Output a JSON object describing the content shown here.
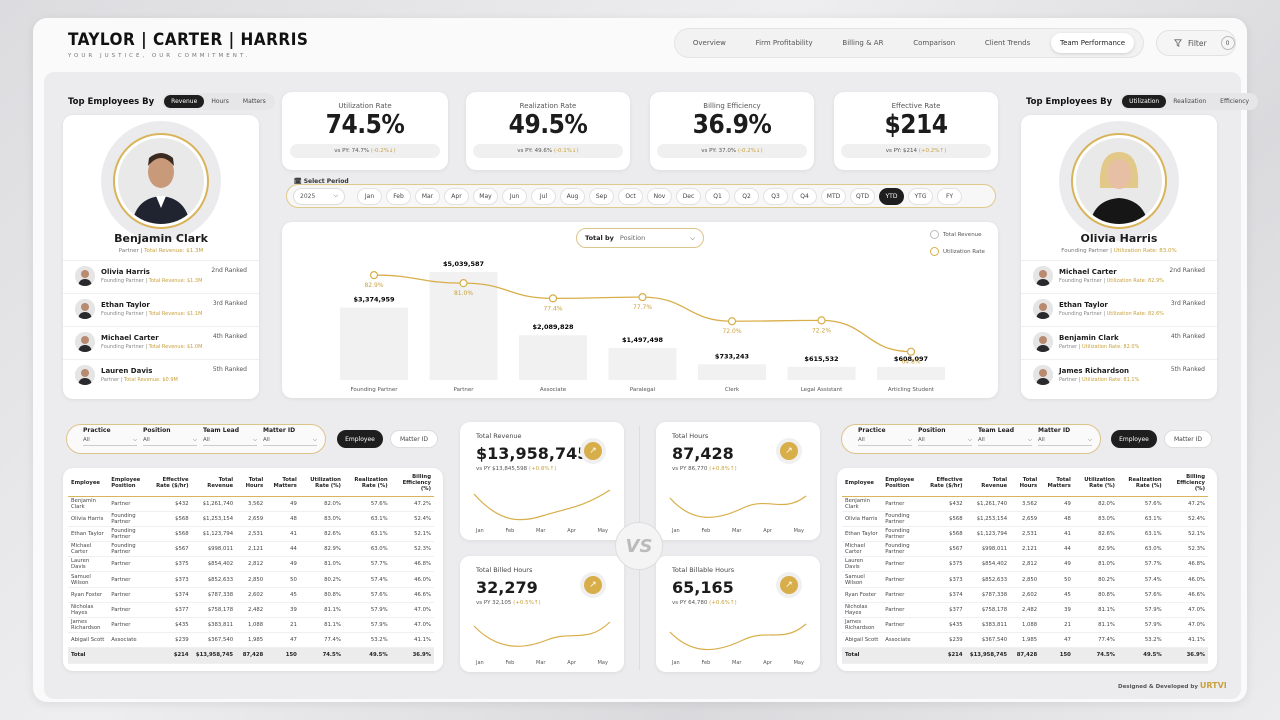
{
  "brand": {
    "name": "TAYLOR | CARTER | HARRIS",
    "tagline": "YOUR JUSTICE, OUR COMMITMENT."
  },
  "nav": {
    "tabs": [
      "Overview",
      "Firm Profitability",
      "Billing & AR",
      "Comparison",
      "Client Trends",
      "Team Performance"
    ],
    "active": "Team Performance"
  },
  "filter": {
    "label": "Filter",
    "count": "0"
  },
  "left_panel": {
    "title": "Top Employees By",
    "tabs": [
      "Revenue",
      "Hours",
      "Matters"
    ],
    "active": "Revenue",
    "top": {
      "name": "Benjamin Clark",
      "role": "Partner",
      "metric": "Total Revenue: $1.3M"
    },
    "ranks": [
      {
        "name": "Olivia Harris",
        "role": "Founding Partner",
        "metric": "Total Revenue: $1.3M",
        "rank": "2nd Ranked"
      },
      {
        "name": "Ethan Taylor",
        "role": "Founding Partner",
        "metric": "Total Revenue: $1.1M",
        "rank": "3rd Ranked"
      },
      {
        "name": "Michael Carter",
        "role": "Founding Partner",
        "metric": "Total Revenue: $1.0M",
        "rank": "4th Ranked"
      },
      {
        "name": "Lauren Davis",
        "role": "Partner",
        "metric": "Total Revenue: $0.9M",
        "rank": "5th Ranked"
      }
    ]
  },
  "right_panel": {
    "title": "Top Employees By",
    "tabs": [
      "Utilization",
      "Realization",
      "Efficiency"
    ],
    "active": "Utilization",
    "top": {
      "name": "Olivia Harris",
      "role": "Founding Partner",
      "metric": "Utilization Rate: 83.0%"
    },
    "ranks": [
      {
        "name": "Michael Carter",
        "role": "Founding Partner",
        "metric": "Utilization Rate: 82.9%",
        "rank": "2nd Ranked"
      },
      {
        "name": "Ethan Taylor",
        "role": "Founding Partner",
        "metric": "Utilization Rate: 82.6%",
        "rank": "3rd Ranked"
      },
      {
        "name": "Benjamin Clark",
        "role": "Partner",
        "metric": "Utilization Rate: 82.0%",
        "rank": "4th Ranked"
      },
      {
        "name": "James Richardson",
        "role": "Partner",
        "metric": "Utilization Rate: 81.1%",
        "rank": "5th Ranked"
      }
    ]
  },
  "kpis": [
    {
      "label": "Utilization Rate",
      "value": "74.5%",
      "py": "vs PY: 74.7%",
      "delta": "(-0.2%↓)"
    },
    {
      "label": "Realization Rate",
      "value": "49.5%",
      "py": "vs PY: 49.6%",
      "delta": "(-0.1%↓)"
    },
    {
      "label": "Billing Efficiency",
      "value": "36.9%",
      "py": "vs PY: 37.0%",
      "delta": "(-0.2%↓)"
    },
    {
      "label": "Effective Rate",
      "value": "$214",
      "py": "vs PY: $214",
      "delta": "(+0.2%↑)"
    }
  ],
  "period": {
    "label": "Select Period",
    "year": "2025",
    "options": [
      "Jan",
      "Feb",
      "Mar",
      "Apr",
      "May",
      "Jun",
      "Jul",
      "Aug",
      "Sep",
      "Oct",
      "Nov",
      "Dec",
      "Q1",
      "Q2",
      "Q3",
      "Q4",
      "MTD",
      "QTD",
      "YTD",
      "YTG",
      "FY"
    ],
    "active": "YTD"
  },
  "chart_controls": {
    "total_by_label": "Total by",
    "total_by_value": "Position",
    "legend": [
      "Total Revenue",
      "Utilization Rate"
    ]
  },
  "chart_data": {
    "type": "bar",
    "categories": [
      "Founding Partner",
      "Partner",
      "Associate",
      "Paralegal",
      "Clerk",
      "Legal Assistant",
      "Articling Student"
    ],
    "series": [
      {
        "name": "Total Revenue",
        "values": [
          3374959,
          5039587,
          2089828,
          1497498,
          733243,
          615532,
          608097
        ],
        "labels": [
          "$3,374,959",
          "$5,039,587",
          "$2,089,828",
          "$1,497,498",
          "$733,243",
          "$615,532",
          "$608,097"
        ]
      },
      {
        "name": "Utilization Rate",
        "type": "line",
        "values": [
          82.9,
          81.0,
          77.4,
          77.7,
          72.0,
          72.2,
          64.8
        ],
        "labels": [
          "82.9%",
          "81.0%",
          "77.4%",
          "77.7%",
          "72.0%",
          "72.2%",
          "64.8%"
        ]
      }
    ]
  },
  "filters_left": {
    "fields": [
      {
        "label": "Practice",
        "value": "All"
      },
      {
        "label": "Position",
        "value": "All"
      },
      {
        "label": "Team Lead",
        "value": "All"
      },
      {
        "label": "Matter ID",
        "value": "All"
      }
    ],
    "buttons": [
      "Employee",
      "Matter ID"
    ]
  },
  "filters_right": {
    "fields": [
      {
        "label": "Practice",
        "value": "All"
      },
      {
        "label": "Position",
        "value": "All"
      },
      {
        "label": "Team Lead",
        "value": "All"
      },
      {
        "label": "Matter ID",
        "value": "All"
      }
    ],
    "buttons": [
      "Employee",
      "Matter ID"
    ]
  },
  "table": {
    "headers": [
      "Employee",
      "Employee Position",
      "Effective Rate ($/hr)",
      "Total Revenue",
      "Total Hours",
      "Total Matters",
      "Utilization Rate (%)",
      "Realization Rate (%)",
      "Billing Efficiency (%)"
    ],
    "rows": [
      [
        "Benjamin Clark",
        "Partner",
        "$432",
        "$1,261,740",
        "3,562",
        "49",
        "82.0%",
        "57.6%",
        "47.2%"
      ],
      [
        "Olivia Harris",
        "Founding Partner",
        "$568",
        "$1,253,154",
        "2,659",
        "48",
        "83.0%",
        "63.1%",
        "52.4%"
      ],
      [
        "Ethan Taylor",
        "Founding Partner",
        "$568",
        "$1,123,794",
        "2,531",
        "41",
        "82.6%",
        "63.1%",
        "52.1%"
      ],
      [
        "Michael Carter",
        "Founding Partner",
        "$567",
        "$998,011",
        "2,121",
        "44",
        "82.9%",
        "63.0%",
        "52.3%"
      ],
      [
        "Lauren Davis",
        "Partner",
        "$375",
        "$854,402",
        "2,812",
        "49",
        "81.0%",
        "57.7%",
        "46.8%"
      ],
      [
        "Samuel Wilson",
        "Partner",
        "$373",
        "$852,633",
        "2,850",
        "50",
        "80.2%",
        "57.4%",
        "46.0%"
      ],
      [
        "Ryan Foster",
        "Partner",
        "$374",
        "$787,338",
        "2,602",
        "45",
        "80.8%",
        "57.6%",
        "46.6%"
      ],
      [
        "Nicholas Hayes",
        "Partner",
        "$377",
        "$758,178",
        "2,482",
        "39",
        "81.1%",
        "57.9%",
        "47.0%"
      ],
      [
        "James Richardson",
        "Partner",
        "$435",
        "$383,811",
        "1,088",
        "21",
        "81.1%",
        "57.9%",
        "47.0%"
      ],
      [
        "Abigail Scott",
        "Associate",
        "$239",
        "$367,540",
        "1,985",
        "47",
        "77.4%",
        "53.2%",
        "41.1%"
      ]
    ],
    "total": [
      "Total",
      "",
      "$214",
      "$13,958,745",
      "87,428",
      "150",
      "74.5%",
      "49.5%",
      "36.9%"
    ]
  },
  "metric_cards": [
    {
      "title": "Total Revenue",
      "value": "$13,958,745",
      "py": "vs PY $13,845,598",
      "delta": "(+0.8%↑)",
      "months": [
        "Jan",
        "Feb",
        "Mar",
        "Apr",
        "May"
      ]
    },
    {
      "title": "Total Hours",
      "value": "87,428",
      "py": "vs PY 86,770",
      "delta": "(+0.8%↑)",
      "months": [
        "Jan",
        "Feb",
        "Mar",
        "Apr",
        "May"
      ]
    },
    {
      "title": "Total Billed Hours",
      "value": "32,279",
      "py": "vs PY 32,105",
      "delta": "(+0.5%↑)",
      "months": [
        "Jan",
        "Feb",
        "Mar",
        "Apr",
        "May"
      ]
    },
    {
      "title": "Total Billable Hours",
      "value": "65,165",
      "py": "vs PY 64,780",
      "delta": "(+0.6%↑)",
      "months": [
        "Jan",
        "Feb",
        "Mar",
        "Apr",
        "May"
      ]
    }
  ],
  "vs": "VS",
  "credit": {
    "text": "Designed & Developed by",
    "brand": "URTVI"
  },
  "colors": {
    "accent": "#d8ae4a",
    "dark": "#1e1e1e"
  }
}
